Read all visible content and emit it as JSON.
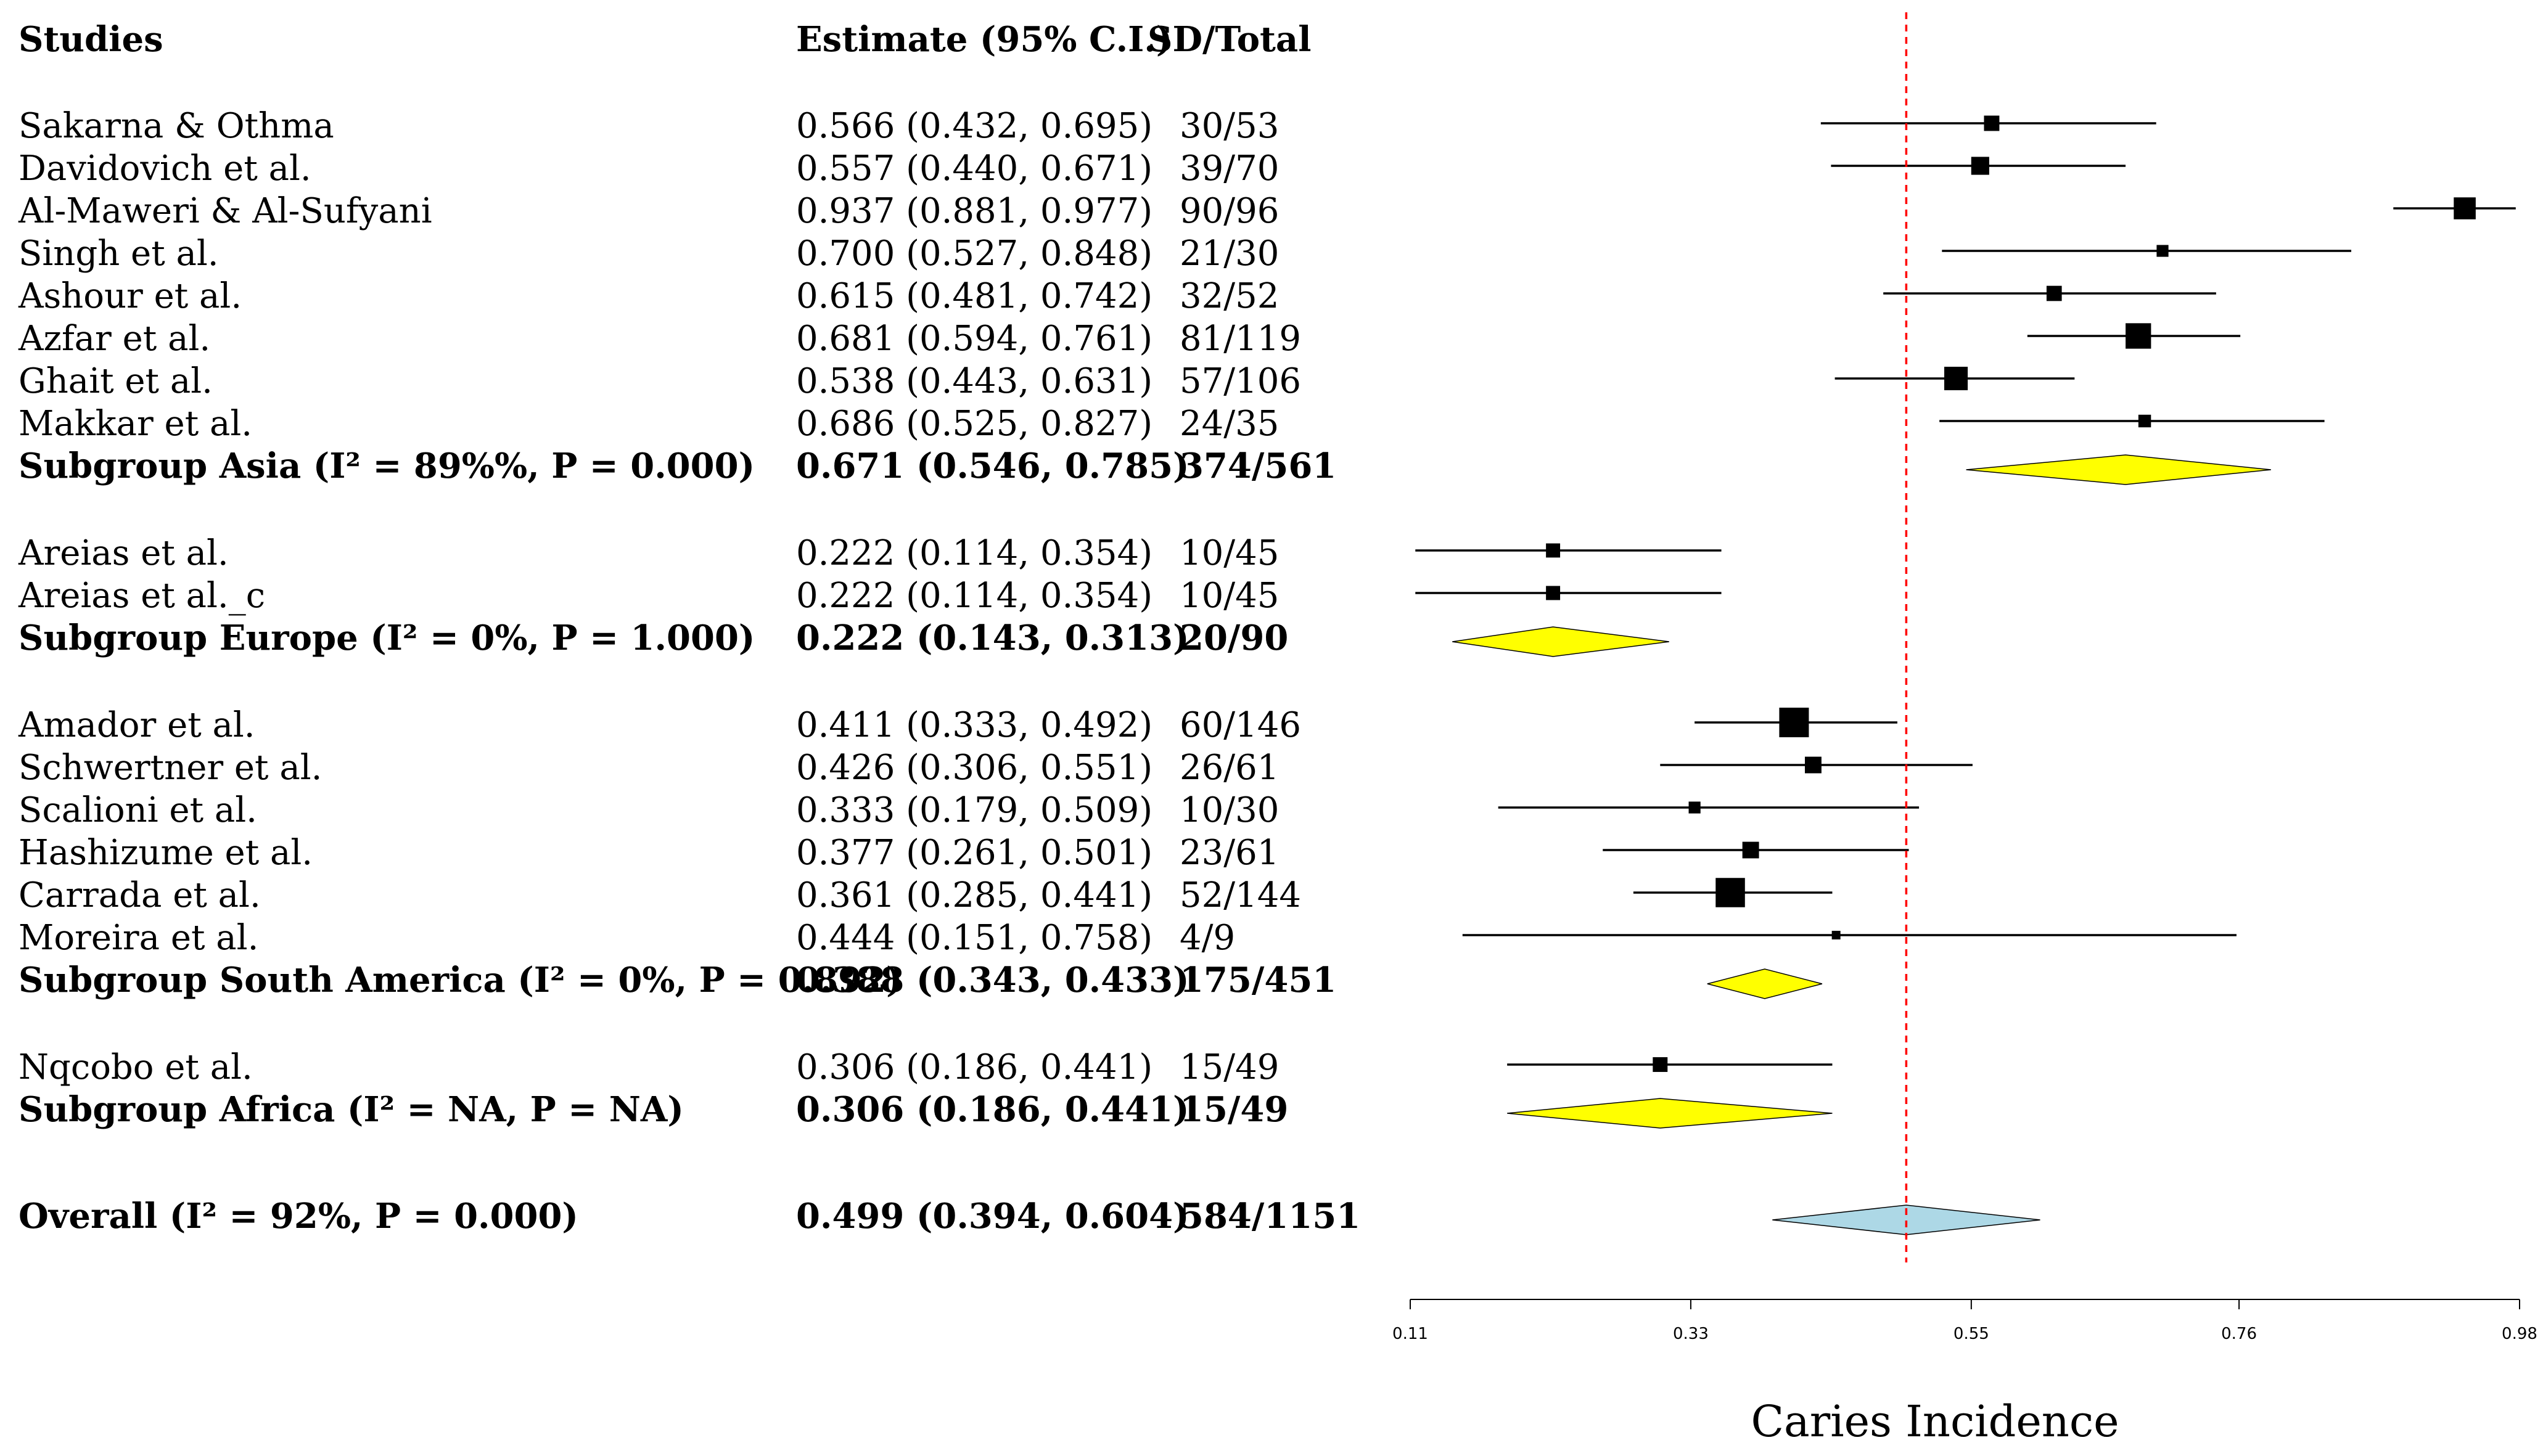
{
  "chart_data": {
    "type": "forest",
    "headers": {
      "studies": "Studies",
      "estimate": "Estimate (95% C.I.)",
      "sd_total": "SD/Total"
    },
    "xlabel": "Caries Incidence",
    "xlim": [
      0.11,
      0.98
    ],
    "x_ticks": [
      0.11,
      0.33,
      0.55,
      0.76,
      0.98
    ],
    "x_tick_labels": [
      "0.11",
      "0.33",
      "0.55",
      "0.76",
      "0.98"
    ],
    "reference_line": 0.499,
    "colors": {
      "study_marker": "#000000",
      "subgroup_diamond": "#ffff00",
      "overall_diamond": "#add8e6",
      "reference_line": "#ff0000"
    },
    "rows": [
      {
        "kind": "study",
        "label": "Sakarna & Othma",
        "estimate_text": "0.566 (0.432, 0.695)",
        "sd_total": "30/53",
        "est": 0.566,
        "lo": 0.432,
        "hi": 0.695,
        "weight": 53
      },
      {
        "kind": "study",
        "label": "Davidovich et al.",
        "estimate_text": "0.557 (0.440, 0.671)",
        "sd_total": "39/70",
        "est": 0.557,
        "lo": 0.44,
        "hi": 0.671,
        "weight": 70
      },
      {
        "kind": "study",
        "label": "Al-Maweri & Al-Sufyani",
        "estimate_text": "0.937 (0.881, 0.977)",
        "sd_total": "90/96",
        "est": 0.937,
        "lo": 0.881,
        "hi": 0.977,
        "weight": 96
      },
      {
        "kind": "study",
        "label": "Singh et al.",
        "estimate_text": "0.700 (0.527, 0.848)",
        "sd_total": "21/30",
        "est": 0.7,
        "lo": 0.527,
        "hi": 0.848,
        "weight": 30
      },
      {
        "kind": "study",
        "label": "Ashour et al.",
        "estimate_text": "0.615 (0.481, 0.742)",
        "sd_total": "32/52",
        "est": 0.615,
        "lo": 0.481,
        "hi": 0.742,
        "weight": 52
      },
      {
        "kind": "study",
        "label": "Azfar et al.",
        "estimate_text": "0.681 (0.594, 0.761)",
        "sd_total": "81/119",
        "est": 0.681,
        "lo": 0.594,
        "hi": 0.761,
        "weight": 119
      },
      {
        "kind": "study",
        "label": "Ghait et al.",
        "estimate_text": "0.538 (0.443, 0.631)",
        "sd_total": "57/106",
        "est": 0.538,
        "lo": 0.443,
        "hi": 0.631,
        "weight": 106
      },
      {
        "kind": "study",
        "label": "Makkar et al.",
        "estimate_text": "0.686 (0.525, 0.827)",
        "sd_total": "24/35",
        "est": 0.686,
        "lo": 0.525,
        "hi": 0.827,
        "weight": 35
      },
      {
        "kind": "subgroup",
        "label": "Subgroup Asia (I² = 89%%, P = 0.000)",
        "estimate_text": "0.671 (0.546, 0.785)",
        "sd_total": "374/561",
        "est": 0.671,
        "lo": 0.546,
        "hi": 0.785
      },
      {
        "kind": "gap"
      },
      {
        "kind": "study",
        "label": "Areias et al.",
        "estimate_text": "0.222 (0.114, 0.354)",
        "sd_total": "10/45",
        "est": 0.222,
        "lo": 0.114,
        "hi": 0.354,
        "weight": 45
      },
      {
        "kind": "study",
        "label": "Areias et al._c",
        "estimate_text": "0.222 (0.114, 0.354)",
        "sd_total": "10/45",
        "est": 0.222,
        "lo": 0.114,
        "hi": 0.354,
        "weight": 45
      },
      {
        "kind": "subgroup",
        "label": "Subgroup Europe (I² = 0%, P = 1.000)",
        "estimate_text": "0.222 (0.143, 0.313)",
        "sd_total": "20/90",
        "est": 0.222,
        "lo": 0.143,
        "hi": 0.313
      },
      {
        "kind": "gap"
      },
      {
        "kind": "study",
        "label": "Amador et al.",
        "estimate_text": "0.411 (0.333, 0.492)",
        "sd_total": "60/146",
        "est": 0.411,
        "lo": 0.333,
        "hi": 0.492,
        "weight": 146
      },
      {
        "kind": "study",
        "label": "Schwertner et al.",
        "estimate_text": "0.426 (0.306, 0.551)",
        "sd_total": "26/61",
        "est": 0.426,
        "lo": 0.306,
        "hi": 0.551,
        "weight": 61
      },
      {
        "kind": "study",
        "label": "Scalioni et al.",
        "estimate_text": "0.333 (0.179, 0.509)",
        "sd_total": "10/30",
        "est": 0.333,
        "lo": 0.179,
        "hi": 0.509,
        "weight": 30
      },
      {
        "kind": "study",
        "label": "Hashizume et al.",
        "estimate_text": "0.377 (0.261, 0.501)",
        "sd_total": "23/61",
        "est": 0.377,
        "lo": 0.261,
        "hi": 0.501,
        "weight": 61
      },
      {
        "kind": "study",
        "label": "Carrada et al.",
        "estimate_text": "0.361 (0.285, 0.441)",
        "sd_total": "52/144",
        "est": 0.361,
        "lo": 0.285,
        "hi": 0.441,
        "weight": 144
      },
      {
        "kind": "study",
        "label": "Moreira et al.",
        "estimate_text": "0.444 (0.151, 0.758)",
        "sd_total": "4/9",
        "est": 0.444,
        "lo": 0.151,
        "hi": 0.758,
        "weight": 9
      },
      {
        "kind": "subgroup",
        "label": "Subgroup South America (I² = 0%, P = 0.892)",
        "estimate_text": "0.388 (0.343, 0.433)",
        "sd_total": "175/451",
        "est": 0.388,
        "lo": 0.343,
        "hi": 0.433
      },
      {
        "kind": "gap"
      },
      {
        "kind": "study",
        "label": "Nqcobo et al.",
        "estimate_text": "0.306 (0.186, 0.441)",
        "sd_total": "15/49",
        "est": 0.306,
        "lo": 0.186,
        "hi": 0.441,
        "weight": 49
      },
      {
        "kind": "subgroup",
        "label": "Subgroup Africa (I² = NA, P = NA)",
        "estimate_text": "0.306 (0.186, 0.441)",
        "sd_total": "15/49",
        "est": 0.306,
        "lo": 0.186,
        "hi": 0.441
      },
      {
        "kind": "gap"
      },
      {
        "kind": "overall",
        "label": "Overall (I² = 92%, P = 0.000)",
        "estimate_text": "0.499 (0.394, 0.604)",
        "sd_total": "584/1151",
        "est": 0.499,
        "lo": 0.394,
        "hi": 0.604
      }
    ]
  }
}
